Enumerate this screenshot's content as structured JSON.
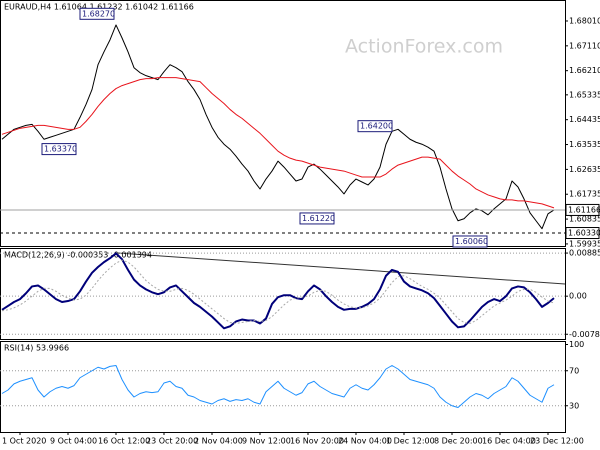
{
  "watermark": "ActionForex.com",
  "chart_data": [
    {
      "type": "line",
      "title": "EURAUD,H4 1.61064 1.61232 1.61042 1.61166",
      "ylim": [
        1.5986,
        1.6877
      ],
      "yticks": [
        {
          "value": 1.6801,
          "label": "1.68010"
        },
        {
          "value": 1.6711,
          "label": "1.67110"
        },
        {
          "value": 1.6621,
          "label": "1.66210"
        },
        1.65335,
        1.64435,
        1.63535,
        1.62635,
        1.61735,
        1.60835,
        1.59935
      ],
      "price_lines": [
        1.61166,
        {
          "value": 1.6033,
          "label": "1.60330"
        }
      ],
      "annotations": [
        {
          "value": 1.6827,
          "label": "1.68270"
        },
        {
          "value": 1.6337,
          "label": "1.63370"
        },
        {
          "value": 1.642,
          "label": "1.64200"
        },
        {
          "value": 1.6122,
          "label": "1.61220"
        },
        {
          "value": 1.6006,
          "label": "1.60060"
        }
      ],
      "series": [
        {
          "color": "#000000",
          "values": [
            1.63726,
            1.63906,
            1.64086,
            1.64158,
            1.6423,
            1.64266,
            1.64014,
            1.63726,
            1.63798,
            1.6387,
            1.63942,
            1.64014,
            1.64086,
            1.64518,
            1.64986,
            1.65526,
            1.66426,
            1.66894,
            1.67326,
            1.67866,
            1.67398,
            1.66894,
            1.66318,
            1.66138,
            1.6603,
            1.65958,
            1.65886,
            1.66174,
            1.66426,
            1.66318,
            1.66174,
            1.65814,
            1.65526,
            1.65166,
            1.64626,
            1.64158,
            1.63798,
            1.63546,
            1.63366,
            1.63114,
            1.62826,
            1.62574,
            1.62214,
            1.61926,
            1.62286,
            1.62574,
            1.62934,
            1.62718,
            1.62466,
            1.62214,
            1.62286,
            1.62718,
            1.62826,
            1.62646,
            1.6243,
            1.62214,
            1.61998,
            1.61746,
            1.6207,
            1.62286,
            1.62178,
            1.6207,
            1.62286,
            1.62718,
            1.63546,
            1.64014,
            1.64086,
            1.63906,
            1.63726,
            1.63618,
            1.63546,
            1.63438,
            1.63294,
            1.62718,
            1.61926,
            1.61206,
            1.60774,
            1.60846,
            1.61062,
            1.61206,
            1.61134,
            1.6099,
            1.61206,
            1.61386,
            1.61566,
            1.62214,
            1.61998,
            1.61566,
            1.61062,
            1.60774,
            1.60486,
            1.61026,
            1.61166
          ]
        },
        {
          "color": "#e8141c",
          "values": [
            1.63906,
            1.63978,
            1.6405,
            1.64122,
            1.64158,
            1.64194,
            1.6423,
            1.6423,
            1.64194,
            1.64158,
            1.64122,
            1.64086,
            1.64086,
            1.64158,
            1.64374,
            1.64626,
            1.64914,
            1.65166,
            1.65382,
            1.65562,
            1.6567,
            1.65742,
            1.65814,
            1.65886,
            1.65922,
            1.65922,
            1.65958,
            1.65958,
            1.65958,
            1.65958,
            1.65922,
            1.65886,
            1.6585,
            1.65814,
            1.65598,
            1.65382,
            1.65202,
            1.65022,
            1.64806,
            1.64626,
            1.64482,
            1.64302,
            1.64122,
            1.63942,
            1.63726,
            1.6351,
            1.63294,
            1.6315,
            1.63042,
            1.6297,
            1.62934,
            1.62862,
            1.6279,
            1.62718,
            1.62682,
            1.62646,
            1.6261,
            1.62574,
            1.62502,
            1.6243,
            1.62358,
            1.62358,
            1.62358,
            1.62358,
            1.62466,
            1.62646,
            1.6279,
            1.62862,
            1.62934,
            1.63006,
            1.63078,
            1.63078,
            1.63042,
            1.63006,
            1.6279,
            1.62574,
            1.62394,
            1.6225,
            1.62106,
            1.61926,
            1.61818,
            1.6171,
            1.61638,
            1.61566,
            1.6153,
            1.6153,
            1.61494,
            1.61494,
            1.61458,
            1.61422,
            1.61386,
            1.61314,
            1.61242
          ]
        }
      ]
    },
    {
      "type": "line",
      "title": "MACD(12,26,9) -0.000353 -0.001394",
      "ylim": [
        -0.0088,
        0.0099
      ],
      "yticks": [
        0.008859,
        {
          "value": 0,
          "label": "0.00"
        },
        -0.007826
      ],
      "series": [
        {
          "color": "#00007a",
          "width": 2,
          "values": [
            -0.0028,
            -0.002,
            -0.0012,
            -0.0006,
            0.0006,
            0.002,
            0.0022,
            0.0014,
            0.0004,
            -0.0006,
            -0.0012,
            -0.001,
            -0.0006,
            0.001,
            0.003,
            0.0048,
            0.006,
            0.007,
            0.0078,
            0.0088,
            0.0076,
            0.0054,
            0.0034,
            0.0022,
            0.0014,
            0.0008,
            0.0004,
            0.0008,
            0.0018,
            0.0022,
            0.001,
            -0.0002,
            -0.0014,
            -0.0022,
            -0.0032,
            -0.0042,
            -0.0054,
            -0.0066,
            -0.0062,
            -0.0052,
            -0.0048,
            -0.005,
            -0.005,
            -0.0056,
            -0.0046,
            -0.0016,
            -0.0002,
            0.0002,
            0.0002,
            -0.0004,
            -0.0006,
            0.001,
            0.0022,
            0.0014,
            0.0,
            -0.0012,
            -0.0022,
            -0.0028,
            -0.0026,
            -0.0026,
            -0.0022,
            -0.0016,
            -0.0006,
            0.0014,
            0.0042,
            0.0054,
            0.005,
            0.003,
            0.002,
            0.0016,
            0.0012,
            0.0006,
            -0.0004,
            -0.002,
            -0.0036,
            -0.0052,
            -0.0064,
            -0.0062,
            -0.005,
            -0.0036,
            -0.0022,
            -0.0012,
            -0.0006,
            -0.001,
            0.0,
            0.0016,
            0.002,
            0.0018,
            0.0008,
            -0.0006,
            -0.0022,
            -0.0014,
            -0.0004
          ]
        },
        {
          "color": "#a8a8a8",
          "width": 1,
          "dash": true,
          "values": [
            -0.003,
            -0.0028,
            -0.0024,
            -0.0018,
            -0.001,
            0.0,
            0.001,
            0.0016,
            0.0016,
            0.001,
            0.0002,
            -0.0004,
            -0.0008,
            -0.0006,
            0.0002,
            0.0016,
            0.0032,
            0.0046,
            0.0058,
            0.0068,
            0.0074,
            0.007,
            0.006,
            0.0046,
            0.0032,
            0.0022,
            0.0014,
            0.001,
            0.001,
            0.0014,
            0.0016,
            0.0012,
            0.0004,
            -0.0006,
            -0.0016,
            -0.0026,
            -0.0036,
            -0.0046,
            -0.0054,
            -0.0056,
            -0.0054,
            -0.0052,
            -0.005,
            -0.0052,
            -0.005,
            -0.0042,
            -0.003,
            -0.0018,
            -0.0008,
            -0.0004,
            -0.0002,
            0.0,
            0.0008,
            0.0012,
            0.001,
            0.0002,
            -0.0008,
            -0.0016,
            -0.0022,
            -0.0024,
            -0.0024,
            -0.002,
            -0.0014,
            -0.0004,
            0.0012,
            0.0028,
            0.004,
            0.0042,
            0.0036,
            0.0028,
            0.002,
            0.0014,
            0.0006,
            -0.0004,
            -0.0018,
            -0.0032,
            -0.0046,
            -0.0054,
            -0.0056,
            -0.005,
            -0.004,
            -0.003,
            -0.002,
            -0.0014,
            -0.0008,
            0.0,
            0.001,
            0.0014,
            0.0014,
            0.0008,
            -0.0002,
            -0.001,
            -0.0014
          ]
        }
      ]
    },
    {
      "type": "line",
      "title": "RSI(14) 53.9966",
      "ylim": [
        0,
        104
      ],
      "yticks": [
        100,
        70,
        30
      ],
      "categories": [
        null,
        null,
        null,
        "1 Oct 2020",
        null,
        null,
        null,
        null,
        null,
        null,
        null,
        "9 Oct 04:00",
        null,
        null,
        null,
        null,
        null,
        null,
        null,
        "16 Oct 12:00",
        null,
        null,
        null,
        null,
        null,
        null,
        null,
        "23 Oct 20:00",
        null,
        null,
        null,
        null,
        null,
        null,
        null,
        "2 Nov 04:00",
        null,
        null,
        null,
        null,
        null,
        null,
        null,
        "9 Nov 12:00",
        null,
        null,
        null,
        null,
        null,
        null,
        null,
        "16 Nov 20:00",
        null,
        null,
        null,
        null,
        null,
        null,
        null,
        "24 Nov 04:00",
        null,
        null,
        null,
        null,
        null,
        null,
        null,
        "1 Dec 12:00",
        null,
        null,
        null,
        null,
        null,
        null,
        null,
        "8 Dec 20:00",
        null,
        null,
        null,
        null,
        null,
        null,
        null,
        "16 Dec 04:00",
        null,
        null,
        null,
        null,
        null,
        null,
        null,
        "23 Dec 12:00",
        null
      ],
      "series": [
        {
          "color": "#1e90ff",
          "values": [
            44,
            48,
            55,
            58,
            60,
            62,
            48,
            40,
            46,
            50,
            52,
            50,
            53,
            62,
            66,
            70,
            74,
            72,
            75,
            76,
            60,
            48,
            40,
            44,
            46,
            45,
            46,
            56,
            58,
            52,
            50,
            42,
            40,
            36,
            34,
            32,
            36,
            38,
            35,
            37,
            36,
            38,
            34,
            32,
            46,
            52,
            58,
            50,
            46,
            42,
            45,
            55,
            58,
            52,
            48,
            44,
            42,
            40,
            50,
            54,
            50,
            48,
            54,
            62,
            72,
            76,
            72,
            66,
            60,
            58,
            56,
            54,
            50,
            40,
            34,
            30,
            28,
            34,
            40,
            44,
            42,
            38,
            44,
            48,
            52,
            62,
            58,
            50,
            42,
            38,
            34,
            50,
            54
          ]
        }
      ]
    }
  ]
}
